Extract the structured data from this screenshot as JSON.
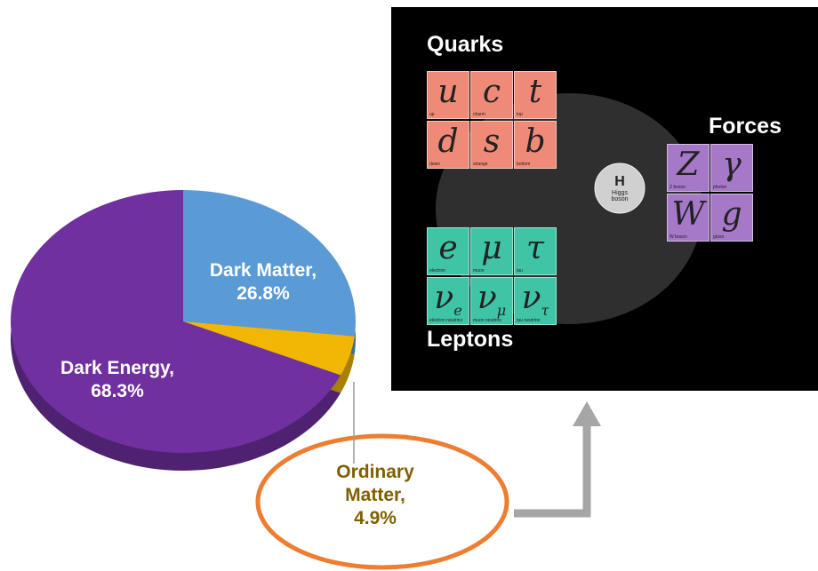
{
  "chart_data": {
    "type": "pie",
    "categories": [
      "Dark Matter,",
      "Ordinary Matter,",
      "Dark Energy,"
    ],
    "values": [
      26.8,
      4.9,
      68.3
    ],
    "value_labels": [
      "26.8%",
      "4.9%",
      "68.3%"
    ],
    "colors": [
      "#5b9bd5",
      "#f2b705",
      "#7030a0"
    ]
  },
  "diagram": {
    "quarks_title": "Quarks",
    "forces_title": "Forces",
    "leptons_title": "Leptons",
    "quarks": [
      {
        "symbol": "u",
        "name": "up"
      },
      {
        "symbol": "c",
        "name": "charm"
      },
      {
        "symbol": "t",
        "name": "top"
      },
      {
        "symbol": "d",
        "name": "down"
      },
      {
        "symbol": "s",
        "name": "strange"
      },
      {
        "symbol": "b",
        "name": "bottom"
      }
    ],
    "forces": [
      {
        "symbol": "Z",
        "name": "Z boson"
      },
      {
        "symbol": "γ",
        "name": "photon"
      },
      {
        "symbol": "W",
        "name": "W boson"
      },
      {
        "symbol": "g",
        "name": "gluon"
      }
    ],
    "leptons": [
      {
        "symbol": "e",
        "name": "electron"
      },
      {
        "symbol": "μ",
        "name": "muon"
      },
      {
        "symbol": "τ",
        "name": "tau"
      },
      {
        "symbol": "ν",
        "sub": "e",
        "name": "electron neutrino"
      },
      {
        "symbol": "ν",
        "sub": "μ",
        "name": "muon neutrino"
      },
      {
        "symbol": "ν",
        "sub": "τ",
        "name": "tau neutrino"
      }
    ],
    "higgs": {
      "symbol": "H",
      "name": "Higgs boson"
    }
  }
}
